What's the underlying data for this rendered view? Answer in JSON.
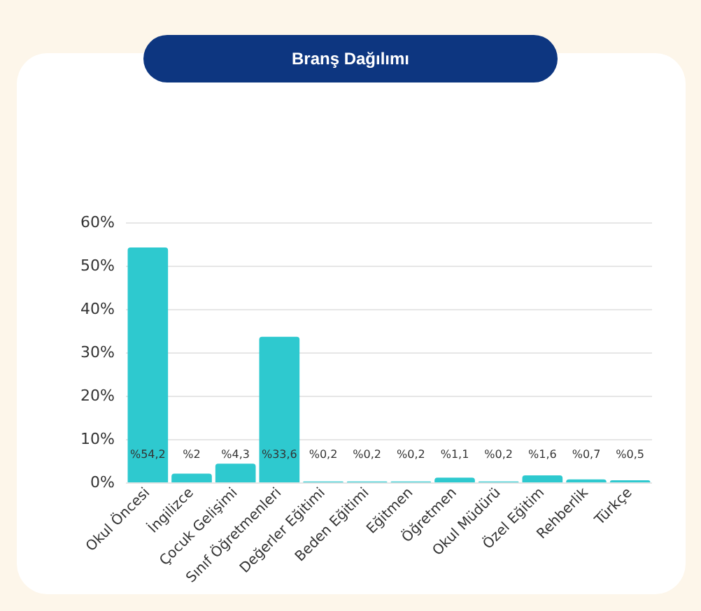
{
  "chart_data": {
    "type": "bar",
    "title": "Branş Dağılımı",
    "categories": [
      "Okul Öncesi",
      "İngilizce",
      "Çocuk Gelişimi",
      "Sınıf Öğretmenleri",
      "Değerler Eğitimi",
      "Beden Eğitimi",
      "Eğitmen",
      "Öğretmen",
      "Okul Müdürü",
      "Özel Eğitim",
      "Rehberlik",
      "Türkçe"
    ],
    "values": [
      54.2,
      2,
      4.3,
      33.6,
      0.2,
      0.2,
      0.2,
      1.1,
      0.2,
      1.6,
      0.7,
      0.5
    ],
    "value_labels": [
      "%54,2",
      "%2",
      "%4,3",
      "%33,6",
      "%0,2",
      "%0,2",
      "%0,2",
      "%1,1",
      "%0,2",
      "%1,6",
      "%0,7",
      "%0,5"
    ],
    "color": "#2ec9cf",
    "ylim": [
      0,
      60
    ],
    "yticks": [
      {
        "value": 0,
        "label": "0%"
      },
      {
        "value": 10,
        "label": "10%"
      },
      {
        "value": 20,
        "label": "20%"
      },
      {
        "value": 30,
        "label": "30%"
      },
      {
        "value": 40,
        "label": "40%"
      },
      {
        "value": 50,
        "label": "50%"
      },
      {
        "value": 60,
        "label": "60%"
      }
    ],
    "grid": "y"
  }
}
